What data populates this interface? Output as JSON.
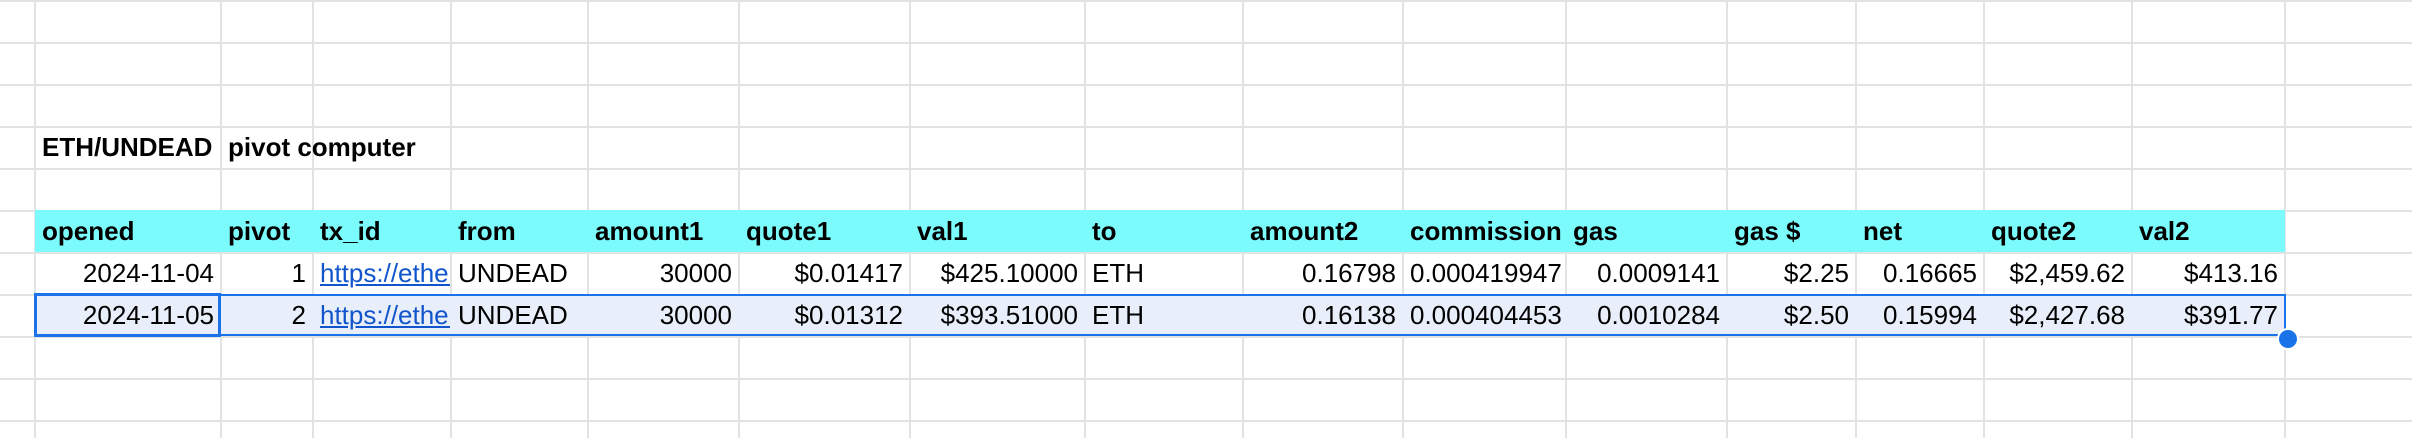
{
  "sheet": {
    "title_a": "ETH/UNDEAD",
    "title_b": "pivot computer"
  },
  "table": {
    "headers": [
      "opened",
      "pivot",
      "tx_id",
      "from",
      "amount1",
      "quote1",
      "val1",
      "to",
      "amount2",
      "commission",
      "gas",
      "gas $",
      "net",
      "quote2",
      "val2"
    ],
    "rows": [
      [
        "2024-11-04",
        "1",
        "https://etherscan.io/tx/",
        "UNDEAD",
        "30000",
        "$0.01417",
        "$425.10000",
        "ETH",
        "0.16798",
        "0.000419947",
        "0.0009141",
        "$2.25",
        "0.16665",
        "$2,459.62",
        "$413.16"
      ],
      [
        "2024-11-05",
        "2",
        "https://etherscan.io/tx/",
        "UNDEAD",
        "30000",
        "$0.01312",
        "$393.51000",
        "ETH",
        "0.16138",
        "0.000404453",
        "0.0010284",
        "$2.50",
        "0.15994",
        "$2,427.68",
        "$391.77"
      ]
    ]
  },
  "selection": {
    "active_cell_value": "2024-11-05"
  },
  "colors": {
    "header_fill": "#7cfbfc",
    "selection_fill": "#e8eefa",
    "selection_border": "#1a73e8",
    "link": "#1155cc"
  }
}
